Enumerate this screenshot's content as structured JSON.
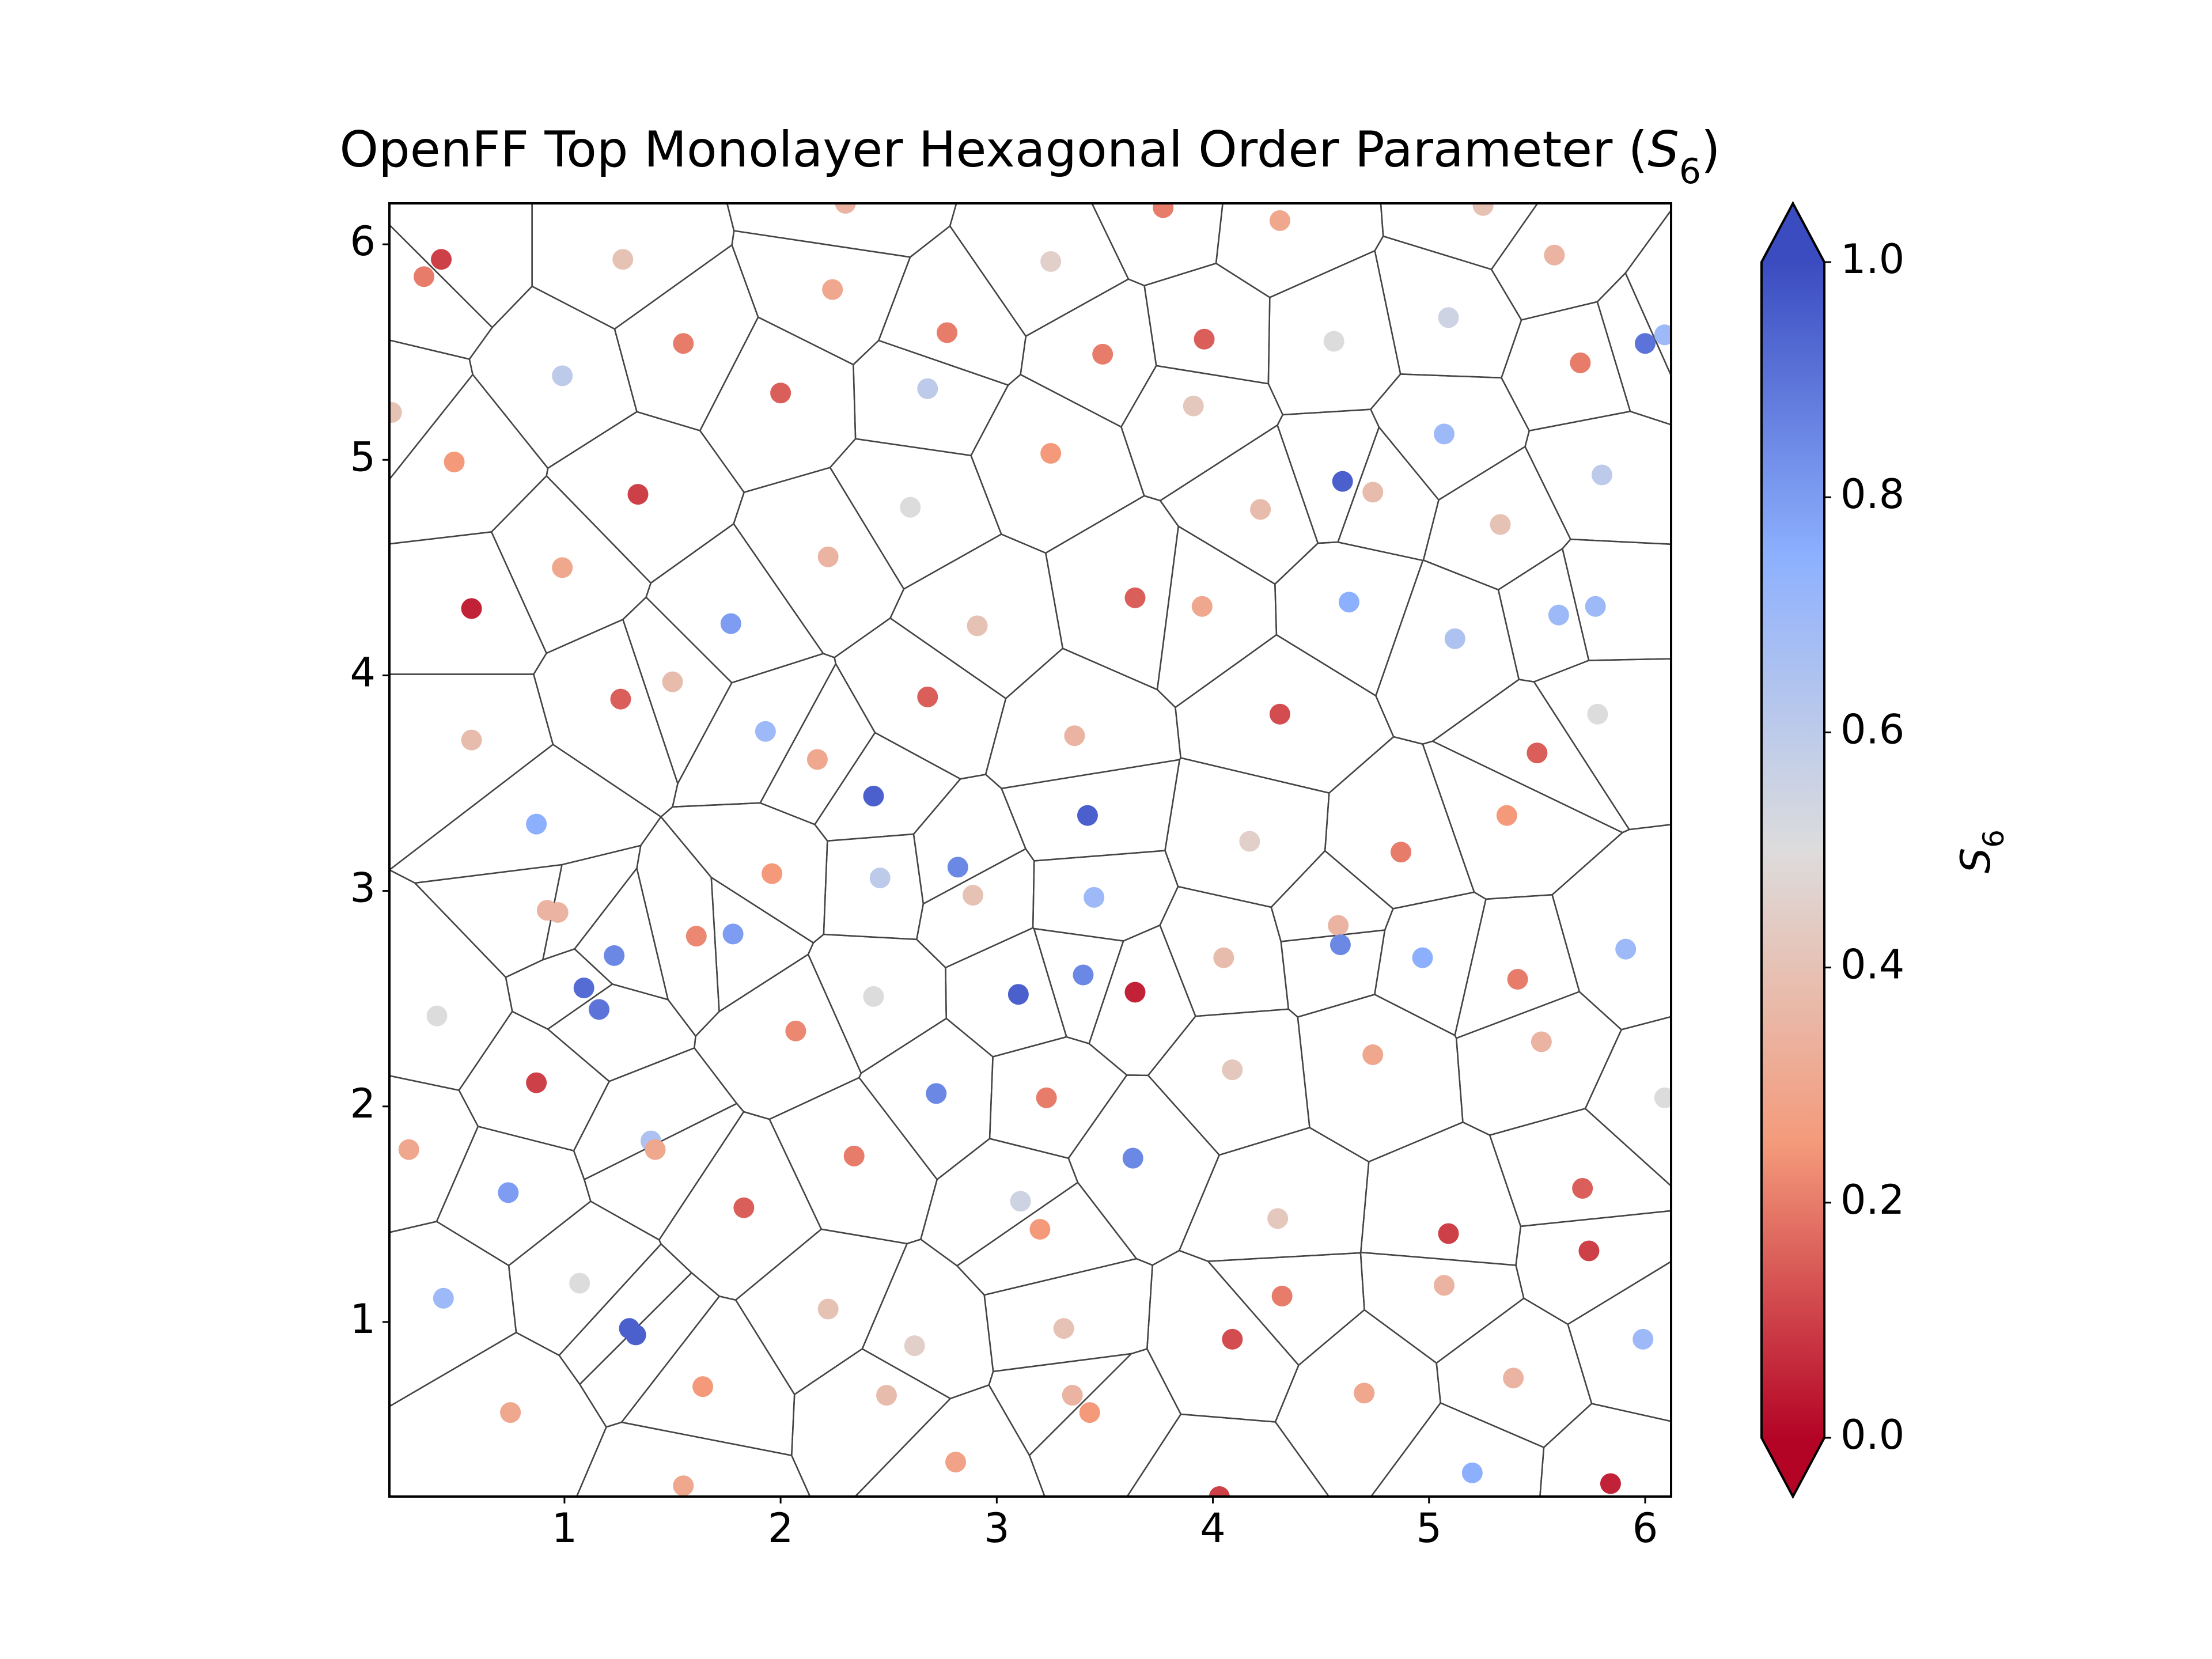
{
  "chart_data": {
    "type": "scatter",
    "title": [
      "OpenFF Top Monolayer Hexagonal Order Parameter (",
      "S",
      "6",
      ")"
    ],
    "x": [
      0.43,
      0.35,
      1.27,
      2.3,
      3.25,
      3.77,
      4.31,
      5.25,
      5.58,
      2.24,
      1.55,
      2.77,
      3.49,
      3.96,
      4.56,
      5.09,
      6.0,
      6.09,
      0.99,
      2.0,
      2.68,
      5.7,
      0.2,
      3.91,
      0.49,
      1.34,
      3.25,
      5.07,
      4.6,
      4.74,
      5.8,
      2.6,
      4.22,
      5.33,
      0.99,
      2.22,
      0.57,
      1.77,
      2.91,
      3.64,
      3.95,
      4.63,
      5.6,
      5.77,
      5.12,
      1.5,
      1.26,
      2.68,
      4.31,
      5.78,
      0.57,
      1.93,
      3.36,
      5.5,
      2.17,
      2.43,
      3.42,
      5.36,
      0.87,
      4.17,
      4.87,
      1.96,
      2.46,
      2.82,
      2.89,
      3.45,
      0.92,
      0.97,
      4.58,
      1.61,
      1.78,
      1.23,
      4.59,
      5.91,
      4.05,
      4.97,
      0.41,
      1.09,
      1.16,
      2.43,
      3.1,
      3.4,
      3.64,
      5.41,
      2.07,
      5.52,
      4.74,
      4.09,
      0.87,
      2.72,
      3.23,
      6.09,
      0.28,
      1.4,
      1.42,
      2.34,
      3.63,
      0.74,
      5.71,
      3.11,
      1.83,
      4.3,
      3.2,
      5.09,
      5.74,
      1.07,
      5.07,
      0.44,
      4.32,
      2.22,
      1.3,
      1.33,
      3.31,
      4.09,
      5.99,
      2.62,
      5.39,
      1.64,
      2.49,
      3.35,
      4.7,
      3.43,
      0.75,
      2.81,
      5.2,
      1.55,
      4.03,
      5.84
    ],
    "y": [
      5.93,
      5.85,
      5.93,
      6.19,
      5.92,
      6.17,
      6.11,
      6.18,
      5.95,
      5.79,
      5.54,
      5.59,
      5.49,
      5.56,
      5.55,
      5.66,
      5.54,
      5.58,
      5.39,
      5.31,
      5.33,
      5.45,
      5.22,
      5.25,
      4.99,
      4.84,
      5.03,
      5.12,
      4.9,
      4.85,
      4.93,
      4.78,
      4.77,
      4.7,
      4.5,
      4.55,
      4.31,
      4.24,
      4.23,
      4.36,
      4.32,
      4.34,
      4.28,
      4.32,
      4.17,
      3.97,
      3.89,
      3.9,
      3.82,
      3.82,
      3.7,
      3.74,
      3.72,
      3.64,
      3.61,
      3.44,
      3.35,
      3.35,
      3.31,
      3.23,
      3.18,
      3.08,
      3.06,
      3.11,
      2.98,
      2.97,
      2.91,
      2.9,
      2.84,
      2.79,
      2.8,
      2.7,
      2.75,
      2.73,
      2.69,
      2.69,
      2.42,
      2.55,
      2.45,
      2.51,
      2.52,
      2.61,
      2.53,
      2.59,
      2.35,
      2.3,
      2.24,
      2.17,
      2.11,
      2.06,
      2.04,
      2.04,
      1.8,
      1.84,
      1.8,
      1.77,
      1.76,
      1.6,
      1.62,
      1.56,
      1.53,
      1.48,
      1.43,
      1.41,
      1.33,
      1.18,
      1.17,
      1.11,
      1.12,
      1.06,
      0.97,
      0.94,
      0.97,
      0.92,
      0.92,
      0.89,
      0.74,
      0.7,
      0.66,
      0.66,
      0.67,
      0.58,
      0.58,
      0.35,
      0.3,
      0.24,
      0.19,
      0.25
    ],
    "values": [
      0.1,
      0.2,
      0.4,
      0.35,
      0.45,
      0.2,
      0.3,
      0.4,
      0.35,
      0.3,
      0.2,
      0.2,
      0.2,
      0.15,
      0.5,
      0.55,
      0.9,
      0.7,
      0.6,
      0.15,
      0.6,
      0.2,
      0.4,
      0.42,
      0.25,
      0.1,
      0.25,
      0.7,
      0.95,
      0.38,
      0.6,
      0.5,
      0.38,
      0.4,
      0.3,
      0.35,
      0.05,
      0.8,
      0.4,
      0.15,
      0.3,
      0.75,
      0.7,
      0.7,
      0.65,
      0.38,
      0.15,
      0.15,
      0.12,
      0.5,
      0.38,
      0.7,
      0.35,
      0.15,
      0.3,
      0.95,
      0.95,
      0.25,
      0.75,
      0.45,
      0.2,
      0.25,
      0.6,
      0.85,
      0.4,
      0.7,
      0.35,
      0.35,
      0.35,
      0.22,
      0.8,
      0.85,
      0.85,
      0.7,
      0.38,
      0.75,
      0.5,
      0.92,
      0.9,
      0.5,
      0.95,
      0.85,
      0.05,
      0.2,
      0.22,
      0.35,
      0.3,
      0.42,
      0.1,
      0.85,
      0.2,
      0.5,
      0.3,
      0.65,
      0.3,
      0.2,
      0.85,
      0.8,
      0.15,
      0.55,
      0.15,
      0.42,
      0.25,
      0.1,
      0.1,
      0.5,
      0.35,
      0.7,
      0.2,
      0.4,
      0.95,
      0.95,
      0.4,
      0.12,
      0.7,
      0.45,
      0.35,
      0.25,
      0.38,
      0.35,
      0.3,
      0.25,
      0.3,
      0.28,
      0.75,
      0.3,
      0.1,
      0.05
    ],
    "xlim": [
      0.19,
      6.12
    ],
    "ylim": [
      0.19,
      6.19
    ],
    "xticks": [
      1,
      2,
      3,
      4,
      5,
      6
    ],
    "yticks": [
      1,
      2,
      3,
      4,
      5,
      6
    ],
    "voronoi": true,
    "colorbar": {
      "label": [
        "S",
        "6"
      ],
      "lim": [
        0,
        1
      ],
      "extend": "both",
      "colors": [
        "#b40426",
        "#f49a7b",
        "#dddcdc",
        "#8db0fe",
        "#3b4cc0"
      ],
      "ticks": [
        {
          "value": 0,
          "label": "0.0"
        },
        {
          "value": 0.2,
          "label": "0.2"
        },
        {
          "value": 0.4,
          "label": "0.4"
        },
        {
          "value": 0.6,
          "label": "0.6"
        },
        {
          "value": 0.8,
          "label": "0.8"
        },
        {
          "value": 1,
          "label": "1.0"
        }
      ]
    }
  }
}
